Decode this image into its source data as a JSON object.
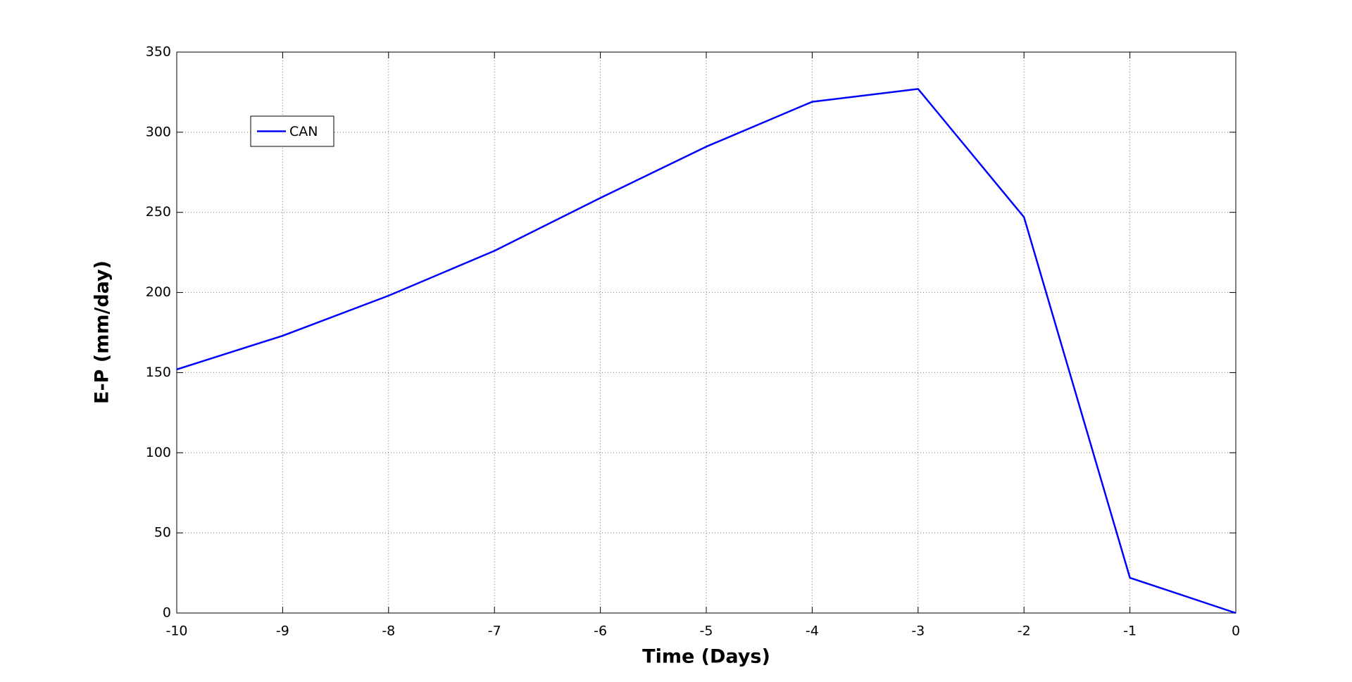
{
  "chart_data": {
    "type": "line",
    "x": [
      -10,
      -9,
      -8,
      -7,
      -6,
      -5,
      -4,
      -3,
      -2,
      -1,
      0
    ],
    "series": [
      {
        "name": "CAN",
        "color": "#0000ff",
        "values": [
          152,
          173,
          198,
          226,
          259,
          291,
          319,
          327,
          247,
          22,
          0
        ]
      }
    ],
    "xlabel": "Time (Days)",
    "ylabel": "E-P (mm/day)",
    "xlim": [
      -10,
      0
    ],
    "xticks": [
      -10,
      -9,
      -8,
      -7,
      -6,
      -5,
      -4,
      -3,
      -2,
      -1,
      0
    ],
    "ylim": [
      0,
      350
    ],
    "yticks": [
      0,
      50,
      100,
      150,
      200,
      250,
      300,
      350
    ],
    "grid": true,
    "legend": "upper left"
  }
}
